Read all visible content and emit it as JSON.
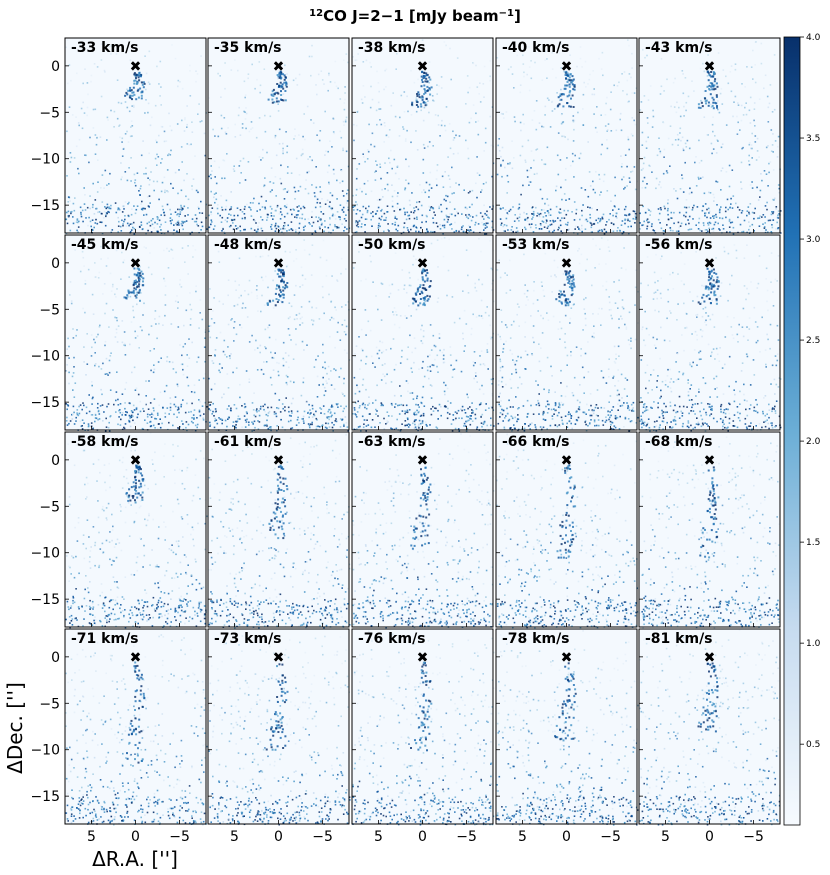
{
  "chart_data": {
    "type": "heatmap",
    "title": "CO J=2−1 [mJy beam",
    "title_sup_prefix": "12",
    "title_sup_suffix": "−1",
    "title_close": "]",
    "xlabel": "ΔR.A. ['']",
    "ylabel": "ΔDec. ['']",
    "xlim": [
      8,
      -8
    ],
    "ylim": [
      -18,
      3
    ],
    "xticks": [
      "5",
      "0",
      "−5"
    ],
    "xtick_values": [
      5,
      0,
      -5
    ],
    "yticks": [
      "0",
      "−5",
      "−10",
      "−15"
    ],
    "ytick_values": [
      0,
      -5,
      -10,
      -15
    ],
    "colormap": "Blues",
    "colorbar": {
      "range": [
        0.1,
        4.0
      ],
      "ticks": [
        "0.5",
        "1.0",
        "1.5",
        "2.0",
        "2.5",
        "3.0",
        "3.5",
        "4.0"
      ],
      "tick_values": [
        0.5,
        1.0,
        1.5,
        2.0,
        2.5,
        3.0,
        3.5,
        4.0
      ]
    },
    "source_marker": {
      "x": 0,
      "y": 0,
      "symbol": "✖"
    },
    "grid": {
      "rows": 4,
      "cols": 5
    },
    "channels": [
      "-33 km/s",
      "-35 km/s",
      "-38 km/s",
      "-40 km/s",
      "-43 km/s",
      "-45 km/s",
      "-48 km/s",
      "-50 km/s",
      "-53 km/s",
      "-56 km/s",
      "-58 km/s",
      "-61 km/s",
      "-63 km/s",
      "-66 km/s",
      "-68 km/s",
      "-71 km/s",
      "-73 km/s",
      "-76 km/s",
      "-78 km/s",
      "-81 km/s"
    ],
    "emission_peak_dec": [
      -1.5,
      -2,
      -2.5,
      -2.5,
      -2.5,
      -2,
      -2.5,
      -2.5,
      -2.5,
      -2.5,
      -2.5,
      -6.5,
      -7.5,
      -8.5,
      -9,
      -9.5,
      -8,
      -8,
      -7,
      -6
    ]
  }
}
